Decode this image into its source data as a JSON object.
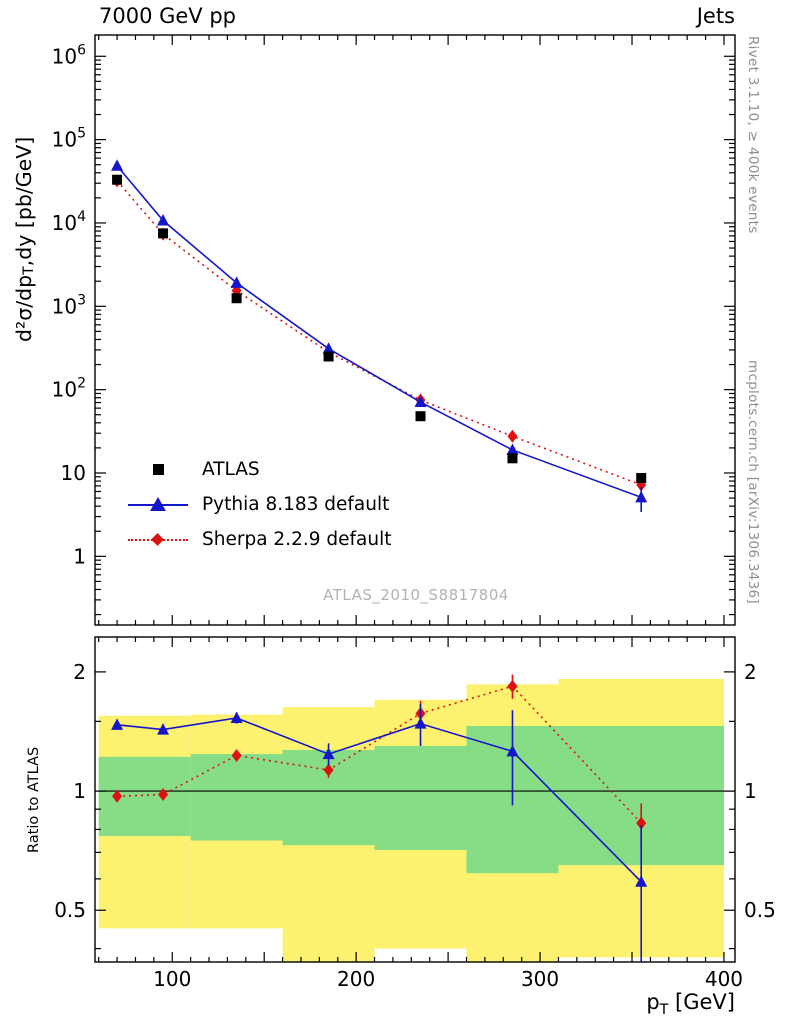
{
  "header": {
    "left": "7000 GeV pp",
    "right": "Jets"
  },
  "side_notes": {
    "top": "Rivet 3.1.10, ≥ 400k events",
    "bottom": "mcplots.cern.ch [arXiv:1306.3436]"
  },
  "watermark": "ATLAS_2010_S8817804",
  "axes": {
    "x_label": {
      "pre": "p",
      "sub": "T",
      "post": " [GeV]"
    },
    "y_label_top": {
      "pre": "d²σ/dp",
      "sub": "T",
      "post": ",dy [pb/GeV]"
    },
    "y_label_bottom": "Ratio to ATLAS"
  },
  "colors": {
    "atlas_black": "#000000",
    "pythia_blue": "#1515cc",
    "sherpa_red": "#dd1111",
    "band_yellow": "#fdf170",
    "band_green": "#86dd86",
    "frame": "#000000",
    "watermark_gray": "#b2b2b2",
    "side_note_gray": "#8f8f8f"
  },
  "legend": [
    {
      "label": "ATLAS",
      "marker": "square",
      "color": "#000000",
      "line": "none"
    },
    {
      "label": "Pythia 8.183 default",
      "marker": "triangle",
      "color": "#1515cc",
      "line": "solid"
    },
    {
      "label": "Sherpa 2.2.9 default",
      "marker": "diamond",
      "color": "#dd1111",
      "line": "dotted"
    }
  ],
  "chart_data": [
    {
      "type": "scatter",
      "panel": "spectrum",
      "xlabel": "p_T [GeV]",
      "ylabel": "d²σ/dp_T,dy [pb/GeV]",
      "xlim": [
        58,
        406
      ],
      "ylog": true,
      "ylim": [
        0.15,
        1800000
      ],
      "y_major_decades": [
        0,
        1,
        2,
        3,
        4,
        5,
        6
      ],
      "x_tick_minor_step": 10,
      "x_tick_major_step": 50,
      "x_tick_label_step": 100,
      "x_tick_range": [
        60,
        400
      ],
      "x": [
        70,
        95,
        135,
        185,
        235,
        285,
        355
      ],
      "series": [
        {
          "name": "ATLAS",
          "legend_ref": 0,
          "values": [
            33000,
            7500,
            1250,
            250,
            48,
            15,
            8.7
          ],
          "yerr": null
        },
        {
          "name": "Pythia 8.183 default",
          "legend_ref": 1,
          "values": [
            48500,
            10700,
            1910,
            310,
            71,
            18.9,
            5.1
          ],
          "yerr": [
            0,
            0,
            0,
            0,
            0,
            0,
            1.7
          ]
        },
        {
          "name": "Sherpa 2.2.9 default",
          "legend_ref": 2,
          "values": [
            32000,
            7350,
            1540,
            282,
            75,
            27.6,
            7.2
          ],
          "yerr": [
            0,
            0,
            0,
            0,
            0,
            2.2,
            1.2
          ]
        }
      ]
    },
    {
      "type": "line",
      "panel": "ratio",
      "ylabel": "Ratio to ATLAS",
      "xlim": [
        58,
        406
      ],
      "ylog": true,
      "ylim": [
        0.37,
        2.45
      ],
      "y_labeled_ticks": [
        0.5,
        1,
        2
      ],
      "y_minor_ticks": [
        0.4,
        0.6,
        0.7,
        0.8,
        0.9,
        1.5
      ],
      "reference_line": 1,
      "x": [
        70,
        95,
        135,
        185,
        235,
        285,
        355
      ],
      "series": [
        {
          "name": "Pythia 8.183 default",
          "legend_ref": 1,
          "values": [
            1.47,
            1.43,
            1.53,
            1.24,
            1.48,
            1.26,
            0.59
          ],
          "yerr": [
            0.04,
            0.04,
            0.05,
            0.08,
            0.18,
            0.34,
            0.23
          ]
        },
        {
          "name": "Sherpa 2.2.9 default",
          "legend_ref": 2,
          "values": [
            0.97,
            0.98,
            1.23,
            1.13,
            1.57,
            1.84,
            0.83
          ],
          "yerr": [
            0.02,
            0.02,
            0.03,
            0.05,
            0.12,
            0.13,
            0.1
          ]
        }
      ],
      "bands": [
        {
          "x": [
            60,
            110
          ],
          "yellow": [
            0.45,
            1.55
          ],
          "green": [
            0.77,
            1.22
          ]
        },
        {
          "x": [
            110,
            160
          ],
          "yellow": [
            0.45,
            1.56
          ],
          "green": [
            0.75,
            1.24
          ]
        },
        {
          "x": [
            160,
            210
          ],
          "yellow": [
            0.33,
            1.63
          ],
          "green": [
            0.73,
            1.27
          ]
        },
        {
          "x": [
            210,
            260
          ],
          "yellow": [
            0.4,
            1.7
          ],
          "green": [
            0.71,
            1.3
          ]
        },
        {
          "x": [
            260,
            310
          ],
          "yellow": [
            0.37,
            1.86
          ],
          "green": [
            0.62,
            1.46
          ]
        },
        {
          "x": [
            310,
            400
          ],
          "yellow": [
            0.38,
            1.92
          ],
          "green": [
            0.65,
            1.46
          ]
        }
      ]
    }
  ]
}
